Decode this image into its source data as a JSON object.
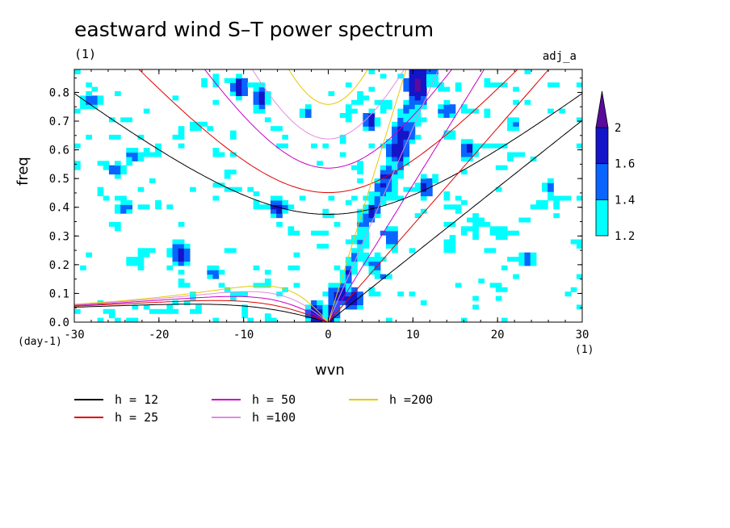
{
  "title": "eastward wind S–T power spectrum",
  "units_label": "(1)",
  "data_label": "adj_a",
  "colors": {
    "background": "#ffffff",
    "axis": "#000000"
  },
  "chart_data": {
    "type": "heatmap",
    "title": "eastward wind S–T power spectrum",
    "xlabel": "wvn",
    "ylabel": "freq",
    "x_units": "(1)",
    "y_units": "(day-1)",
    "xlim": [
      -30,
      30
    ],
    "ylim": [
      0,
      0.88
    ],
    "x_ticks": [
      -30,
      -20,
      -10,
      0,
      10,
      20,
      30
    ],
    "x_tick_labels": [
      "-30",
      "-20",
      "-10",
      "0",
      "10",
      "20",
      "30"
    ],
    "y_ticks": [
      0,
      0.1,
      0.2,
      0.3,
      0.4,
      0.5,
      0.6,
      0.7,
      0.8
    ],
    "y_tick_labels": [
      "0.0",
      "0.1",
      "0.2",
      "0.3",
      "0.4",
      "0.5",
      "0.6",
      "0.7",
      "0.8"
    ],
    "colorbar": {
      "levels": [
        1.2,
        1.4,
        1.6,
        2
      ],
      "labels": [
        "1.2",
        "1.4",
        "1.6",
        "2"
      ],
      "colors": [
        "#00ffff",
        "#0a64ff",
        "#1414c8",
        "#5a0a9c"
      ]
    },
    "dispersion_curves": [
      {
        "label": "h = 12",
        "h": 12,
        "color": "#000000"
      },
      {
        "label": "h = 25",
        "h": 25,
        "color": "#e00000"
      },
      {
        "label": "h = 50",
        "h": 50,
        "color": "#c800c8"
      },
      {
        "label": "h =100",
        "h": 100,
        "color": "#e08ce0"
      },
      {
        "label": "h =200",
        "h": 200,
        "color": "#e6c800"
      }
    ],
    "power_blobs": [
      {
        "x": -1.5,
        "y": 0.03,
        "rx": 1.2,
        "ry": 0.05,
        "v": 1.8
      },
      {
        "x": 0.5,
        "y": 0.04,
        "rx": 1.0,
        "ry": 0.04,
        "v": 1.7
      },
      {
        "x": 3.0,
        "y": 0.08,
        "rx": 1.2,
        "ry": 0.04,
        "v": 1.8
      },
      {
        "x": 5.5,
        "y": 0.2,
        "rx": 0.9,
        "ry": 0.05,
        "v": 1.5
      },
      {
        "x": 8.5,
        "y": 0.62,
        "rx": 1.0,
        "ry": 0.1,
        "v": 1.8
      },
      {
        "x": 10.5,
        "y": 0.83,
        "rx": 1.4,
        "ry": 0.06,
        "v": 2.1
      },
      {
        "x": 5.0,
        "y": 0.7,
        "rx": 0.9,
        "ry": 0.04,
        "v": 1.8
      },
      {
        "x": -10.5,
        "y": 0.82,
        "rx": 1.0,
        "ry": 0.04,
        "v": 1.8
      },
      {
        "x": -8.0,
        "y": 0.78,
        "rx": 1.0,
        "ry": 0.05,
        "v": 1.7
      },
      {
        "x": -17.5,
        "y": 0.24,
        "rx": 1.3,
        "ry": 0.05,
        "v": 1.7
      },
      {
        "x": -6.0,
        "y": 0.4,
        "rx": 1.2,
        "ry": 0.04,
        "v": 1.7
      },
      {
        "x": -25.0,
        "y": 0.53,
        "rx": 1.0,
        "ry": 0.03,
        "v": 1.6
      },
      {
        "x": -24.0,
        "y": 0.4,
        "rx": 1.4,
        "ry": 0.03,
        "v": 1.5
      },
      {
        "x": -23.0,
        "y": 0.58,
        "rx": 1.2,
        "ry": 0.03,
        "v": 1.5
      },
      {
        "x": -28.0,
        "y": 0.77,
        "rx": 1.5,
        "ry": 0.03,
        "v": 1.6
      },
      {
        "x": 11.5,
        "y": 0.47,
        "rx": 1.0,
        "ry": 0.04,
        "v": 1.7
      },
      {
        "x": 16.5,
        "y": 0.6,
        "rx": 1.0,
        "ry": 0.04,
        "v": 1.7
      },
      {
        "x": 14.0,
        "y": 0.74,
        "rx": 1.3,
        "ry": 0.03,
        "v": 1.6
      },
      {
        "x": 22.0,
        "y": 0.69,
        "rx": 1.0,
        "ry": 0.03,
        "v": 1.5
      },
      {
        "x": 23.5,
        "y": 0.22,
        "rx": 1.0,
        "ry": 0.03,
        "v": 1.6
      },
      {
        "x": -2.5,
        "y": 0.73,
        "rx": 1.0,
        "ry": 0.03,
        "v": 1.5
      },
      {
        "x": 7.5,
        "y": 0.3,
        "rx": 0.8,
        "ry": 0.05,
        "v": 1.6
      },
      {
        "x": 26.0,
        "y": 0.47,
        "rx": 1.0,
        "ry": 0.03,
        "v": 1.5
      },
      {
        "x": -13.5,
        "y": 0.17,
        "rx": 1.2,
        "ry": 0.03,
        "v": 1.5
      }
    ],
    "power_pattern": {
      "x_bins": 88,
      "y_bins": 58
    }
  }
}
